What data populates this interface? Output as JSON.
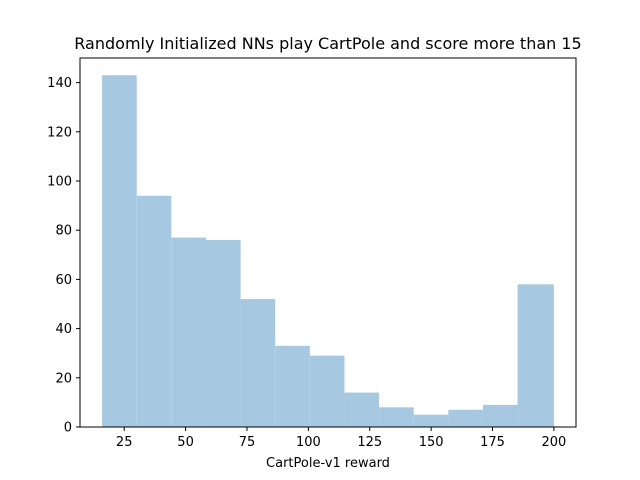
{
  "chart_data": {
    "type": "bar",
    "title": "Randomly Initialized NNs play CartPole and score more than 15",
    "xlabel": "CartPole-v1 reward",
    "ylabel": "",
    "bin_edges": [
      16,
      30.1,
      44.2,
      58.3,
      72.4,
      86.5,
      100.6,
      114.7,
      128.8,
      142.9,
      157.0,
      171.1,
      185.2,
      200
    ],
    "values": [
      143,
      94,
      77,
      76,
      52,
      33,
      29,
      14,
      8,
      5,
      7,
      9,
      58
    ],
    "xlim": [
      7,
      209
    ],
    "ylim": [
      0,
      150
    ],
    "xticks": [
      25,
      50,
      75,
      100,
      125,
      150,
      175,
      200
    ],
    "yticks": [
      0,
      20,
      40,
      60,
      80,
      100,
      120,
      140
    ],
    "bar_color": "#a6c9e1",
    "grid": false
  }
}
